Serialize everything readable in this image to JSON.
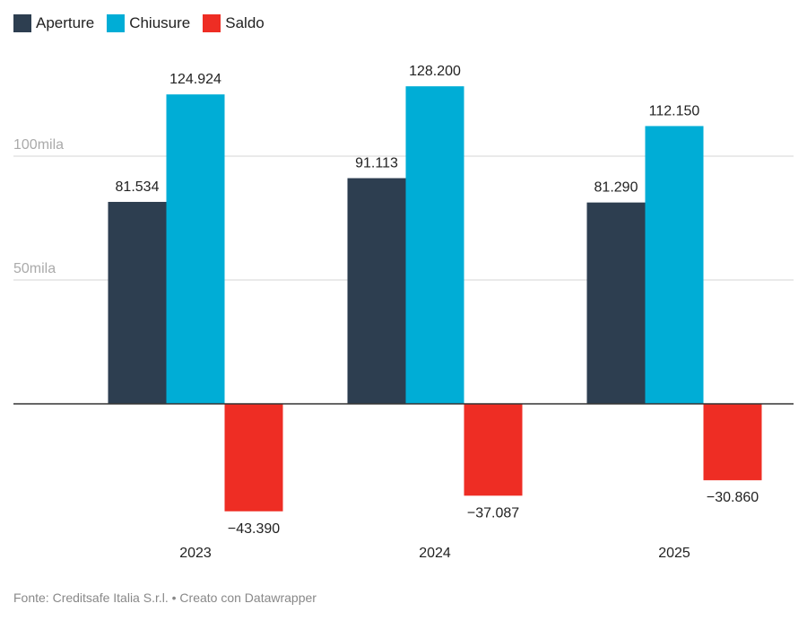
{
  "chart_data": {
    "type": "bar",
    "categories": [
      "2023",
      "2024",
      "2025"
    ],
    "series": [
      {
        "name": "Aperture",
        "color": "#2d3e50",
        "values": [
          81534,
          91113,
          81290
        ],
        "labels": [
          "81.534",
          "91.113",
          "81.290"
        ]
      },
      {
        "name": "Chiusure",
        "color": "#00add6",
        "values": [
          124924,
          128200,
          112150
        ],
        "labels": [
          "124.924",
          "128.200",
          "112.150"
        ]
      },
      {
        "name": "Saldo",
        "color": "#ee2d24",
        "values": [
          -43390,
          -37087,
          -30860
        ],
        "labels": [
          "−43.390",
          "−37.087",
          "−30.860"
        ]
      }
    ],
    "yticks": [
      {
        "value": 50000,
        "label": "50mila"
      },
      {
        "value": 100000,
        "label": "100mila"
      }
    ],
    "grid": true,
    "legend": "top-left"
  },
  "footer": "Fonte: Creditsafe Italia S.r.l. • Creato con Datawrapper"
}
